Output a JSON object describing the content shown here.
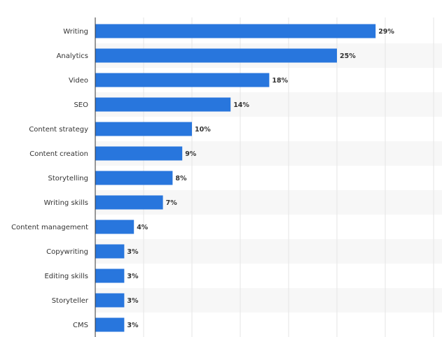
{
  "chart_data": {
    "type": "bar",
    "orientation": "horizontal",
    "title": "",
    "xlabel": "",
    "ylabel": "",
    "categories": [
      "Writing",
      "Analytics",
      "Video",
      "SEO",
      "Content strategy",
      "Content creation",
      "Storytelling",
      "Writing skills",
      "Content management",
      "Copywriting",
      "Editing skills",
      "Storyteller",
      "CMS"
    ],
    "values": [
      29,
      25,
      18,
      14,
      10,
      9,
      8,
      7,
      4,
      3,
      3,
      3,
      3
    ],
    "value_labels": [
      "29%",
      "25%",
      "18%",
      "14%",
      "10%",
      "9%",
      "8%",
      "7%",
      "4%",
      "3%",
      "3%",
      "3%",
      "3%"
    ],
    "xlim": [
      0,
      35
    ],
    "grid": true,
    "bar_color": "#2876dd",
    "band_color": "#f7f7f7"
  }
}
